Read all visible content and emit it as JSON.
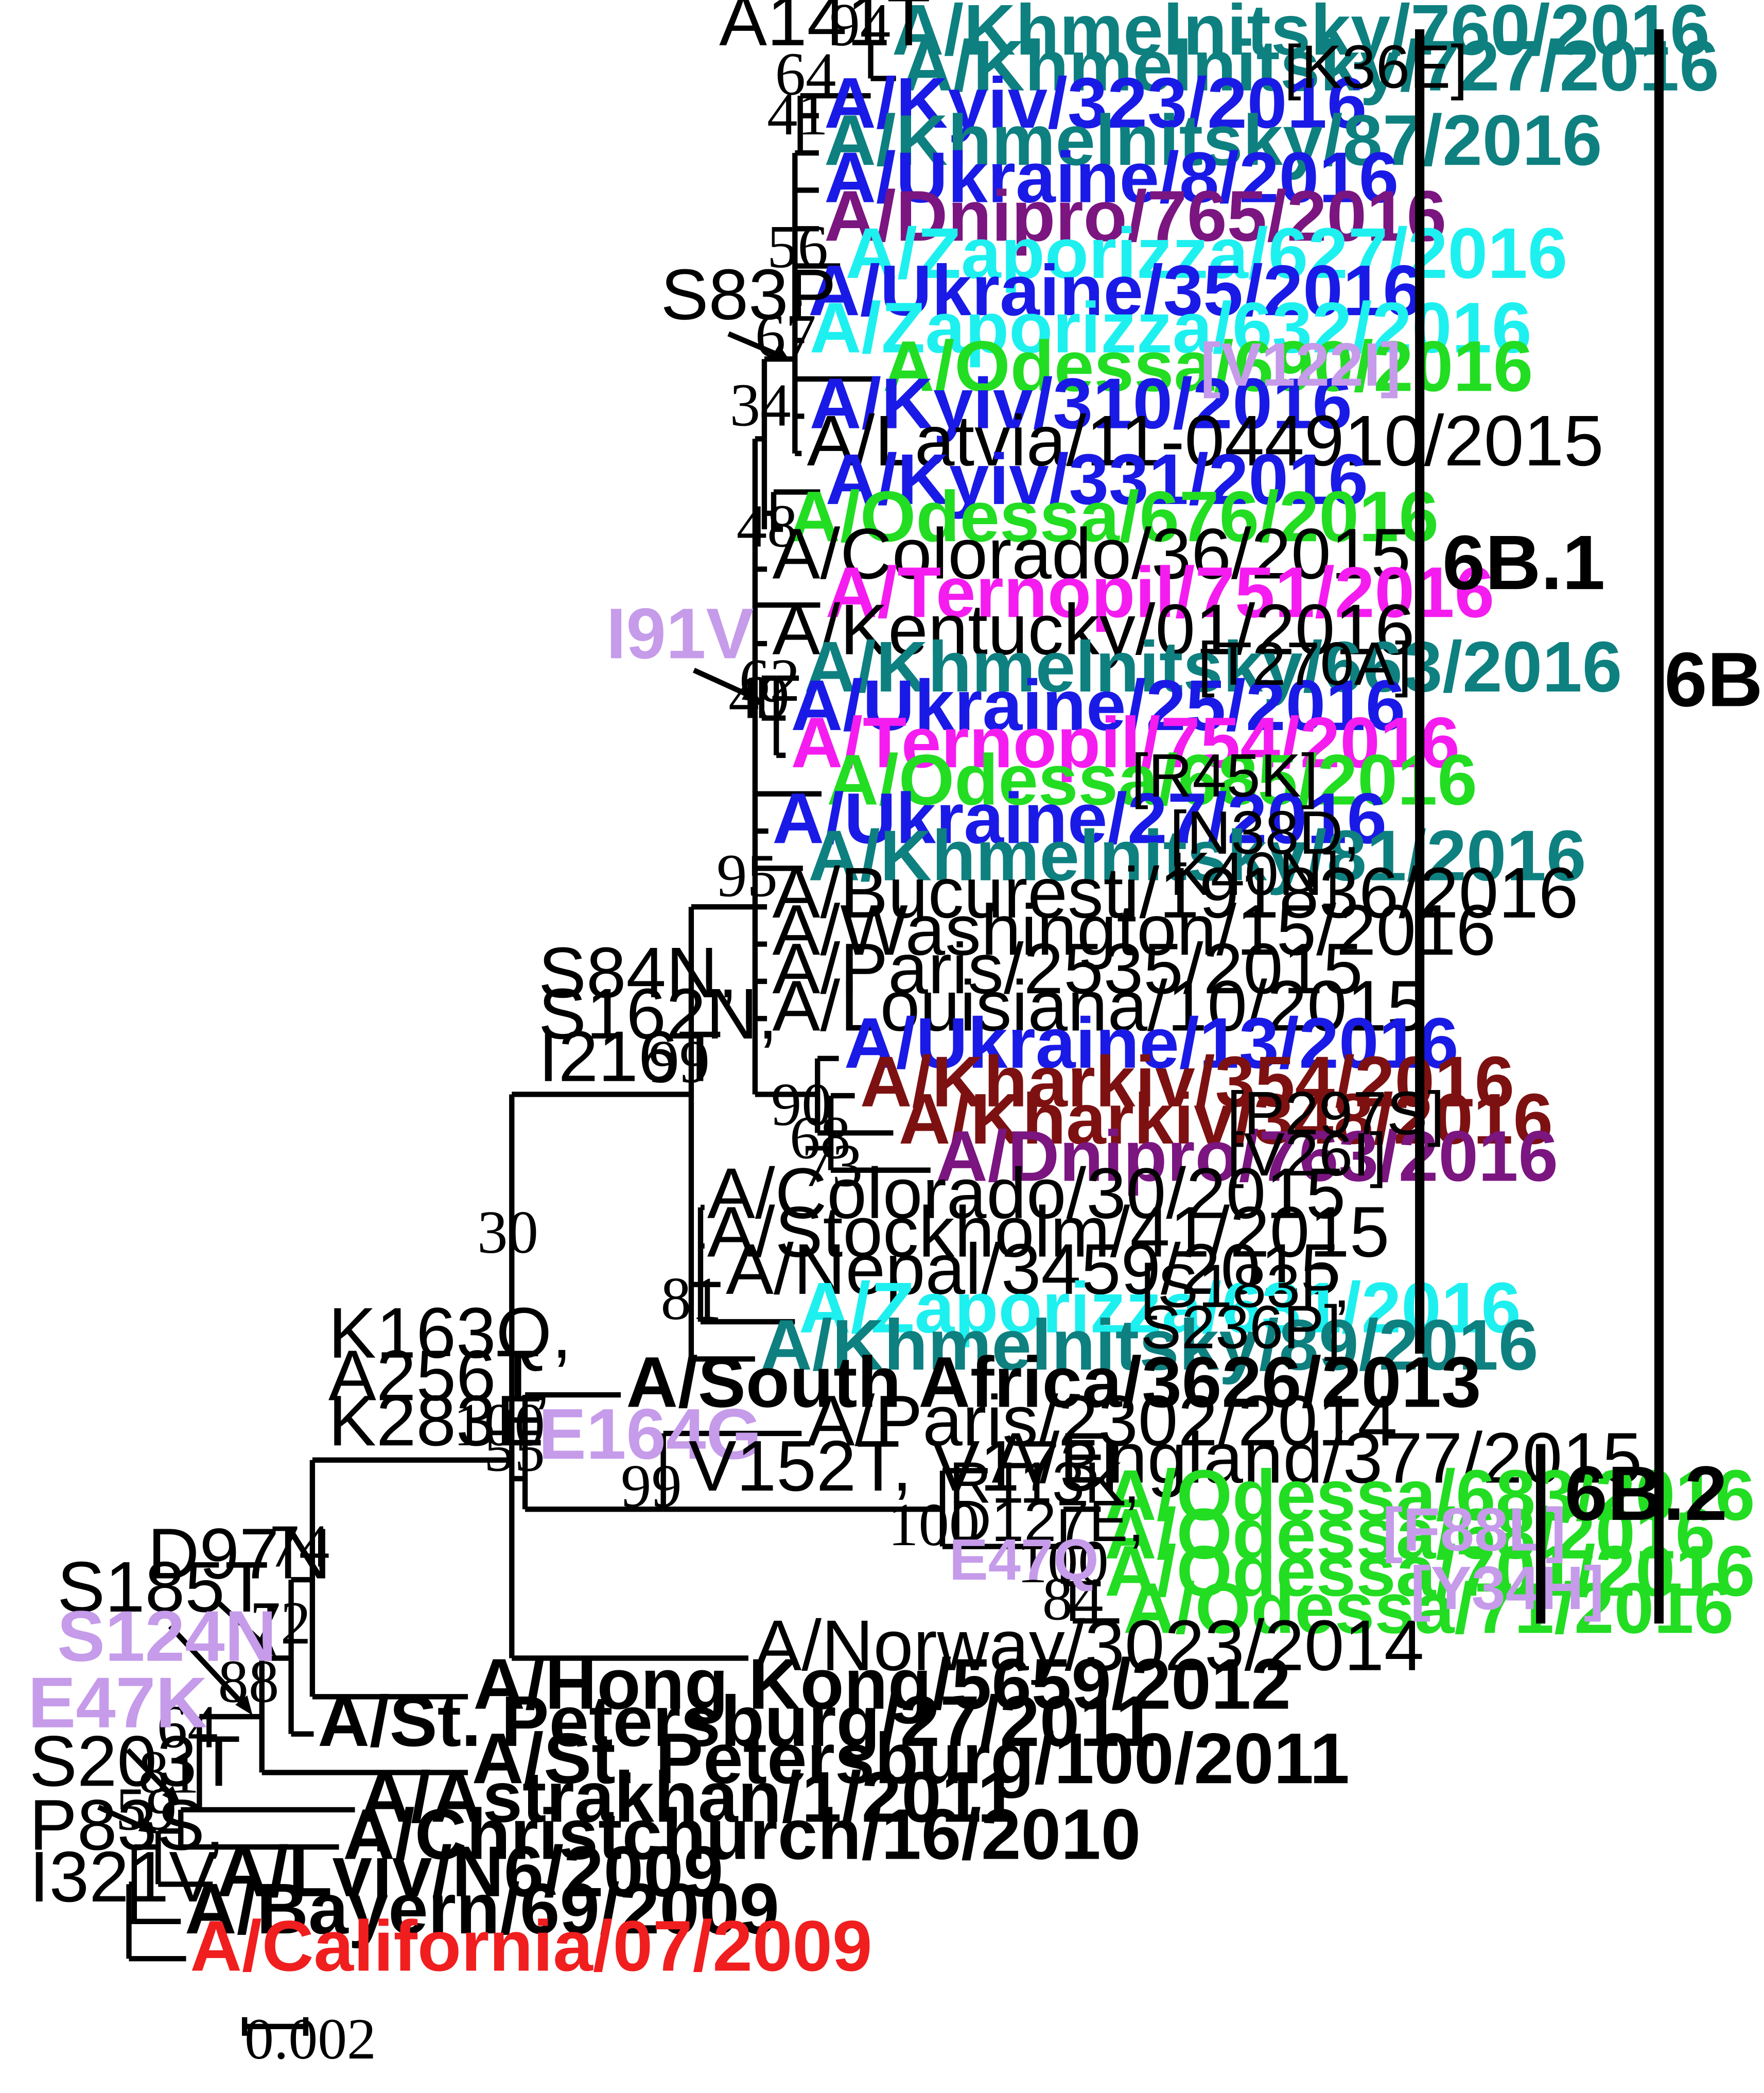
{
  "colors": {
    "teal": "#0E8080",
    "blue": "#1A1AE6",
    "purple": "#7B1580",
    "cyan": "#1EF0F0",
    "green": "#22DD22",
    "magenta": "#F51CF0",
    "darkred": "#7D1111",
    "red": "#F01E1E",
    "black": "#000000",
    "lavender": "#C59BEA"
  },
  "taxa": [
    {
      "id": "kh760",
      "name": "A/Khmelnitsky/760/2016",
      "color": "teal",
      "bold": true
    },
    {
      "id": "kh727",
      "name": "A/Khmelnitsky/727/2016",
      "color": "teal",
      "bold": true
    },
    {
      "id": "ky323",
      "name": "A/Kyiv/323/2016",
      "color": "blue",
      "bold": true
    },
    {
      "id": "kh87",
      "name": "A/Khmelnitsky/87/2016",
      "color": "teal",
      "bold": true
    },
    {
      "id": "uk8",
      "name": "A/Ukraine/8/2016",
      "color": "blue",
      "bold": true
    },
    {
      "id": "dn765",
      "name": "A/Dnipro/765/2016",
      "color": "purple",
      "bold": true
    },
    {
      "id": "za627",
      "name": "A/Zaporizza/627/2016",
      "color": "cyan",
      "bold": true
    },
    {
      "id": "uk35",
      "name": "A/Ukraine/35/2016",
      "color": "blue",
      "bold": true
    },
    {
      "id": "za632",
      "name": "A/Zaporizza/632/2016",
      "color": "cyan",
      "bold": true
    },
    {
      "id": "od690",
      "name": "A/Odessa/690/2016",
      "color": "green",
      "bold": true
    },
    {
      "id": "ky310",
      "name": "A/Kyiv/310/2016",
      "color": "blue",
      "bold": true
    },
    {
      "id": "lat",
      "name": "A/Latvia/11-044910/2015",
      "color": "black",
      "bold": false
    },
    {
      "id": "ky331",
      "name": "A/Kyiv/331/2016",
      "color": "blue",
      "bold": true
    },
    {
      "id": "od676",
      "name": "A/Odessa/676/2016",
      "color": "green",
      "bold": true
    },
    {
      "id": "col36",
      "name": "A/Colorado/36/2015",
      "color": "black",
      "bold": false
    },
    {
      "id": "te751",
      "name": "A/Ternopil/751/2016",
      "color": "magenta",
      "bold": true
    },
    {
      "id": "ken01",
      "name": "A/Kentucky/01/2016",
      "color": "black",
      "bold": false
    },
    {
      "id": "kh663",
      "name": "A/Khmelnitsky/663/2016",
      "color": "teal",
      "bold": true
    },
    {
      "id": "uk25",
      "name": "A/Ukraine/25/2016",
      "color": "blue",
      "bold": true
    },
    {
      "id": "te754",
      "name": "A/Ternopil/754/2016",
      "color": "magenta",
      "bold": true
    },
    {
      "id": "od685",
      "name": "A/Odessa/685/2016",
      "color": "green",
      "bold": true
    },
    {
      "id": "uk27",
      "name": "A/Ukraine/27/2016",
      "color": "blue",
      "bold": true
    },
    {
      "id": "kh81",
      "name": "A/Khmelnitsky/81/2016",
      "color": "teal",
      "bold": true
    },
    {
      "id": "buc",
      "name": "A/Bucuresti/191836/2016",
      "color": "black",
      "bold": false
    },
    {
      "id": "was",
      "name": "A/Washington/15/2016",
      "color": "black",
      "bold": false
    },
    {
      "id": "par2535",
      "name": "A/Paris/2535/2015",
      "color": "black",
      "bold": false
    },
    {
      "id": "lou",
      "name": "A/Louisiana/10/2015",
      "color": "black",
      "bold": false
    },
    {
      "id": "uk13",
      "name": "A/Ukraine/13/2016",
      "color": "blue",
      "bold": true
    },
    {
      "id": "kr354",
      "name": "A/Kharkiv/354/2016",
      "color": "darkred",
      "bold": true
    },
    {
      "id": "kr348",
      "name": "A/Kharkiv/348/2016",
      "color": "darkred",
      "bold": true
    },
    {
      "id": "dn763",
      "name": "A/Dnipro/763/2016",
      "color": "purple",
      "bold": true
    },
    {
      "id": "col30",
      "name": "A/Colorado/30/2015",
      "color": "black",
      "bold": false
    },
    {
      "id": "sto",
      "name": "A/Stockholm/41/2015",
      "color": "black",
      "bold": false
    },
    {
      "id": "nep",
      "name": "A/Nepal/3459/2015",
      "color": "black",
      "bold": false
    },
    {
      "id": "za631",
      "name": "A/Zaporizza/631/2016",
      "color": "cyan",
      "bold": true
    },
    {
      "id": "kh89",
      "name": "A/Khmelnitsky/89/2016",
      "color": "teal",
      "bold": true
    },
    {
      "id": "saf",
      "name": "A/South Africa/3626/2013",
      "color": "black",
      "bold": true
    },
    {
      "id": "par2302",
      "name": "A/Paris/2302/2014",
      "color": "black",
      "bold": false
    },
    {
      "id": "eng",
      "name": "A/England/377/2015",
      "color": "black",
      "bold": false
    },
    {
      "id": "od683",
      "name": "A/Odessa/683/2016",
      "color": "green",
      "bold": true
    },
    {
      "id": "od68",
      "name": "A/Odessa/68/2016",
      "color": "green",
      "bold": true
    },
    {
      "id": "od701",
      "name": "A/Odessa/701/2016",
      "color": "green",
      "bold": true
    },
    {
      "id": "od71",
      "name": "A/Odessa/71/2016",
      "color": "green",
      "bold": true
    },
    {
      "id": "nor",
      "name": "A/Norway/3023/2014",
      "color": "black",
      "bold": false
    },
    {
      "id": "hk",
      "name": "A/Hong Kong/5659/2012",
      "color": "black",
      "bold": true
    },
    {
      "id": "sp27",
      "name": "A/St. Petersburg/27/2011",
      "color": "black",
      "bold": true
    },
    {
      "id": "sp100",
      "name": "A/St. Petersburg/100/2011",
      "color": "black",
      "bold": true
    },
    {
      "id": "ast",
      "name": "A/Astrakhan/1/2011",
      "color": "black",
      "bold": true
    },
    {
      "id": "chr",
      "name": "A/Christchurch/16/2010",
      "color": "black",
      "bold": true
    },
    {
      "id": "lviv",
      "name": "A/Lviv/N6/2009",
      "color": "black",
      "bold": true
    },
    {
      "id": "bay",
      "name": "A/Bayern/69/2009",
      "color": "black",
      "bold": true
    },
    {
      "id": "cal",
      "name": "A/California/07/2009",
      "color": "red",
      "bold": true
    }
  ],
  "bootstrap": [
    "94",
    "64",
    "41",
    "56",
    "67",
    "34",
    "48",
    "62",
    "49",
    "95",
    "90",
    "68",
    "73",
    "99",
    "81",
    "30",
    "100",
    "55",
    "99",
    "100",
    "100",
    "84",
    "74",
    "72",
    "88",
    "64",
    "81",
    "59"
  ],
  "mutations": {
    "a141t": "A141T",
    "s83p": "S83P",
    "i91v": "I91V",
    "s84n": "S84N,",
    "s162n": "S162N,",
    "i216t": "I216T",
    "k163q": "K163Q,",
    "a256t": "A256T,",
    "k283e": "K283E",
    "e164g": "E164G",
    "v152t": "V152T, V173I",
    "r113k": "R113K,",
    "d127e": "D127E,",
    "e47q": "E47Q",
    "d97n": "D97N",
    "s185t": "S185T,",
    "s124n": "S124N",
    "e47k": "E47K",
    "s203t": "S203T",
    "p83s": "P83S,",
    "i321v": "I321V"
  },
  "notes": {
    "k36e": "[K36E]",
    "v122i": "[V122I]",
    "t270a": "[T270A]",
    "r45k": "[R45K]",
    "n38d": "[N38D,",
    "k40n": "K40N]",
    "p297s": "[P297S]",
    "v26i": "[V26I]",
    "s183p": "[S183P,",
    "s236p": "S236P]",
    "f88l": "[F88L]",
    "y34h": "[Y34H]"
  },
  "clades": {
    "c6b1": "6B.1",
    "c6b2": "6B.2",
    "c6b": "6B"
  },
  "scale": {
    "label": "0.002",
    "value": 0.002
  }
}
